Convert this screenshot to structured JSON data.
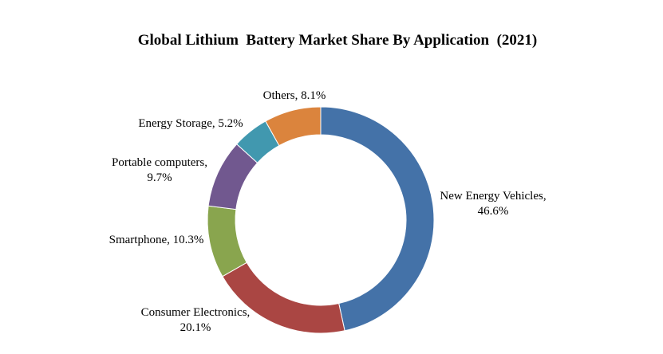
{
  "chart_data": {
    "type": "pie",
    "variant": "donut",
    "title": "Global Lithium  Battery Market Share By Application  (2021)",
    "legend": "none",
    "slices": [
      {
        "name": "New Energy Vehicles",
        "value": 46.6,
        "label_lines": [
          "New Energy Vehicles,",
          "46.6%"
        ],
        "color": "#4472A8"
      },
      {
        "name": "Consumer Electronics",
        "value": 20.1,
        "label_lines": [
          "Consumer Electronics,",
          "20.1%"
        ],
        "color": "#AA4643"
      },
      {
        "name": "Smartphone",
        "value": 10.3,
        "label_lines": [
          "Smartphone,  10.3%"
        ],
        "color": "#89A54E"
      },
      {
        "name": "Portable computers",
        "value": 9.7,
        "label_lines": [
          "Portable computers,",
          "9.7%"
        ],
        "color": "#71588F"
      },
      {
        "name": "Energy Storage",
        "value": 5.2,
        "label_lines": [
          "Energy Storage,  5.2%"
        ],
        "color": "#4198AF"
      },
      {
        "name": "Others",
        "value": 8.1,
        "label_lines": [
          "Others,  8.1%"
        ],
        "color": "#DB843D"
      }
    ]
  }
}
